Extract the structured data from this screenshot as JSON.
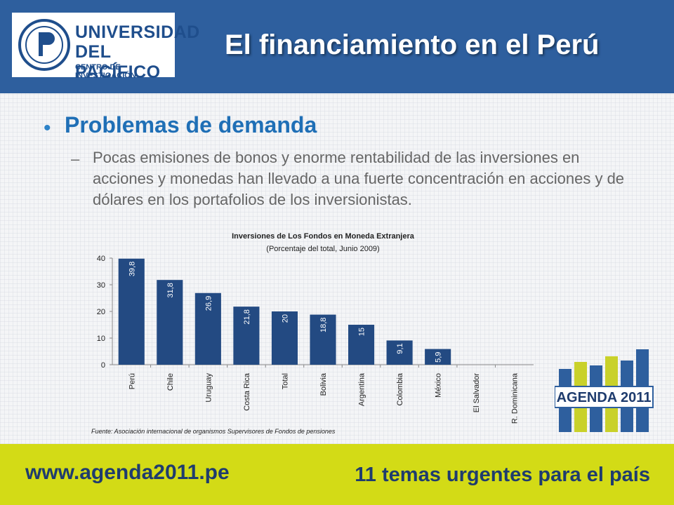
{
  "header": {
    "logo": {
      "line1": "UNIVERSIDAD",
      "line2": "DEL PACÍFICO",
      "line3": "CENTRO DE INVESTIGACIÓN"
    },
    "title": "El financiamiento en el Perú"
  },
  "content": {
    "heading": "Problemas de demanda",
    "bullet_symbol": "•",
    "dash_symbol": "–",
    "paragraph": "Pocas emisiones de bonos y enorme rentabilidad de las inversiones en acciones y monedas han llevado a una fuerte concentración en acciones y de dólares en los portafolios de los inversionistas."
  },
  "chart_data": {
    "type": "bar",
    "title": "Inversiones de Los Fondos en Moneda Extranjera",
    "subtitle": "(Porcentaje del total, Junio 2009)",
    "categories": [
      "Perú",
      "Chile",
      "Uruguay",
      "Costa Rica",
      "Total",
      "Bolivia",
      "Argentina",
      "Colombia",
      "México",
      "El Salvador",
      "R. Dominicana"
    ],
    "values": [
      39.8,
      31.8,
      26.9,
      21.8,
      20,
      18.8,
      15,
      9.1,
      5.9,
      0,
      0
    ],
    "value_labels": [
      "39,8",
      "31,8",
      "26,9",
      "21,8",
      "20",
      "18,8",
      "15",
      "9,1",
      "5,9",
      "",
      ""
    ],
    "yticks": [
      "0",
      "10",
      "20",
      "30",
      "40"
    ],
    "ylim": [
      0,
      40
    ],
    "bar_color": "#234a82",
    "grid": false
  },
  "source": "Fuente: Asociación internacional de organismos Supervisores de Fondos de pensiones",
  "agenda_logo": {
    "text": "AGENDA 2011"
  },
  "footer": {
    "left": "www.agenda2011.pe",
    "right": "11 temas urgentes para el país",
    "color": "#d3db16"
  }
}
